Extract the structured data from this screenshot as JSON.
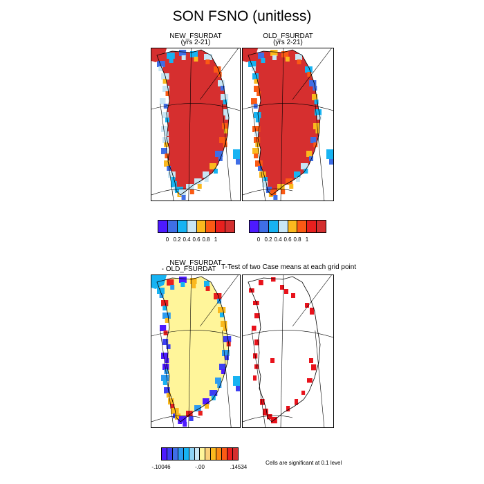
{
  "figure": {
    "title": "SON FSNO (unitless)",
    "colors": {
      "ice": "#d62f2f",
      "outline": "#000000",
      "diff_base": "#fff59a",
      "significant": "#e8121b"
    }
  },
  "panels": {
    "new": {
      "title": "NEW_FSURDAT",
      "subtitle": "(yrs 2-21)"
    },
    "old": {
      "title": "OLD_FSURDAT",
      "subtitle": "(yrs 2-21)"
    },
    "diff": {
      "title_line1": "NEW_FSURDAT",
      "title_line2": "- OLD_FSURDAT"
    },
    "ttest": {
      "title": "T-Test of two Case means at each grid point",
      "note": "Cells are significant at 0.1 level"
    }
  },
  "colorbars": {
    "abs": {
      "colors": [
        "#4d1aff",
        "#3f6ee6",
        "#17b3f2",
        "#c8e6f5",
        "#fbb91e",
        "#fb5a14",
        "#e8201e",
        "#d42f2f"
      ],
      "labels": [
        "0",
        "0.2",
        "0.4",
        "0.6",
        "0.8",
        "1"
      ]
    },
    "diff": {
      "colors": [
        "#4d1aff",
        "#3d3ff2",
        "#3f6ee6",
        "#2d9cf0",
        "#17b3f2",
        "#8fd3f5",
        "#c8e6f5",
        "#fff59a",
        "#fbd07a",
        "#fbb91e",
        "#fb8a14",
        "#fb5a14",
        "#e8201e",
        "#d42f2f"
      ],
      "labels": [
        "-.10046",
        "-.00",
        ".14534"
      ]
    }
  },
  "chart_data": [
    {
      "type": "heatmap",
      "title": "NEW_FSURDAT",
      "subtitle": "(yrs 2-21)",
      "colorbar_ticks": [
        0,
        0.2,
        0.4,
        0.6,
        0.8,
        1
      ],
      "interior_value": 1
    },
    {
      "type": "heatmap",
      "title": "OLD_FSURDAT",
      "subtitle": "(yrs 2-21)",
      "colorbar_ticks": [
        0,
        0.2,
        0.4,
        0.6,
        0.8,
        1
      ],
      "interior_value": 1
    },
    {
      "type": "heatmap",
      "title": "NEW_FSURDAT - OLD_FSURDAT",
      "colorbar_min": -0.10046,
      "colorbar_mid": -0.0,
      "colorbar_max": 0.14534
    },
    {
      "type": "heatmap",
      "title": "T-Test of two Case means at each grid point",
      "significance_level": 0.1
    }
  ]
}
